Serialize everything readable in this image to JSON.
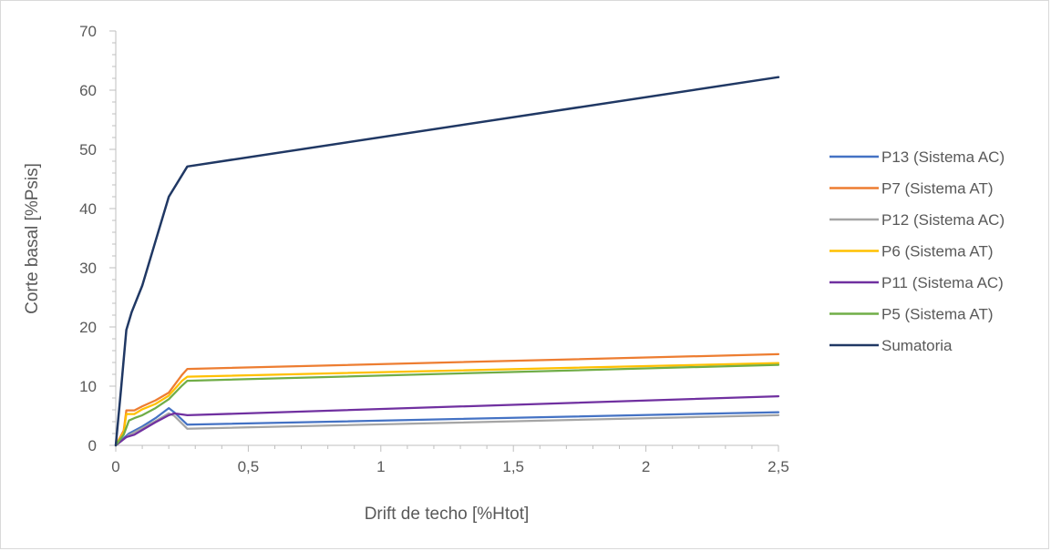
{
  "chart_data": {
    "type": "line",
    "title": "",
    "xlabel": "Drift de techo [%Htot]",
    "ylabel": "Corte basal [%Psis]",
    "xlim": [
      0,
      2.5
    ],
    "ylim": [
      0,
      70
    ],
    "x_ticks": [
      "0",
      "0,5",
      "1",
      "1,5",
      "2",
      "2,5"
    ],
    "y_ticks": [
      "0",
      "10",
      "20",
      "30",
      "40",
      "50",
      "60",
      "70"
    ],
    "grid": false,
    "legend_position": "right",
    "series": [
      {
        "name": "P13 (Sistema AC)",
        "color": "#4472c4",
        "points": [
          [
            0,
            0
          ],
          [
            0.05,
            2.0
          ],
          [
            0.1,
            3.2
          ],
          [
            0.15,
            4.6
          ],
          [
            0.2,
            6.3
          ],
          [
            0.22,
            5.6
          ],
          [
            0.27,
            3.5
          ],
          [
            2.5,
            5.6
          ]
        ]
      },
      {
        "name": "P7 (Sistema AT)",
        "color": "#ed7d31",
        "points": [
          [
            0,
            0
          ],
          [
            0.03,
            2.5
          ],
          [
            0.04,
            5.9
          ],
          [
            0.07,
            5.9
          ],
          [
            0.1,
            6.6
          ],
          [
            0.15,
            7.6
          ],
          [
            0.2,
            8.9
          ],
          [
            0.25,
            11.9
          ],
          [
            0.27,
            12.9
          ],
          [
            2.5,
            15.4
          ]
        ]
      },
      {
        "name": "P12 (Sistema AC)",
        "color": "#a5a5a5",
        "points": [
          [
            0,
            0
          ],
          [
            0.05,
            1.7
          ],
          [
            0.1,
            2.9
          ],
          [
            0.15,
            4.1
          ],
          [
            0.2,
            5.4
          ],
          [
            0.22,
            5.0
          ],
          [
            0.27,
            2.8
          ],
          [
            2.5,
            5.1
          ]
        ]
      },
      {
        "name": "P6 (Sistema AT)",
        "color": "#ffc000",
        "points": [
          [
            0,
            0
          ],
          [
            0.03,
            2.2
          ],
          [
            0.04,
            5.3
          ],
          [
            0.07,
            5.3
          ],
          [
            0.1,
            6.1
          ],
          [
            0.15,
            7.0
          ],
          [
            0.2,
            8.4
          ],
          [
            0.25,
            10.9
          ],
          [
            0.27,
            11.6
          ],
          [
            2.5,
            13.9
          ]
        ]
      },
      {
        "name": "P11 (Sistema AC)",
        "color": "#7030a0",
        "points": [
          [
            0,
            0
          ],
          [
            0.04,
            1.4
          ],
          [
            0.07,
            1.8
          ],
          [
            0.1,
            2.6
          ],
          [
            0.15,
            3.9
          ],
          [
            0.2,
            5.1
          ],
          [
            0.22,
            5.4
          ],
          [
            0.27,
            5.1
          ],
          [
            2.5,
            8.3
          ]
        ]
      },
      {
        "name": "P5 (Sistema AT)",
        "color": "#70ad47",
        "points": [
          [
            0,
            0
          ],
          [
            0.03,
            1.8
          ],
          [
            0.05,
            4.2
          ],
          [
            0.07,
            4.6
          ],
          [
            0.1,
            5.1
          ],
          [
            0.15,
            6.3
          ],
          [
            0.2,
            7.8
          ],
          [
            0.25,
            10.1
          ],
          [
            0.27,
            10.9
          ],
          [
            2.5,
            13.6
          ]
        ]
      },
      {
        "name": "Sumatoria",
        "color": "#203864",
        "points": [
          [
            0,
            0
          ],
          [
            0.02,
            9.5
          ],
          [
            0.04,
            19.5
          ],
          [
            0.06,
            22.5
          ],
          [
            0.1,
            27
          ],
          [
            0.15,
            34.5
          ],
          [
            0.2,
            42
          ],
          [
            0.27,
            47.1
          ],
          [
            2.5,
            62.2
          ]
        ]
      }
    ]
  }
}
